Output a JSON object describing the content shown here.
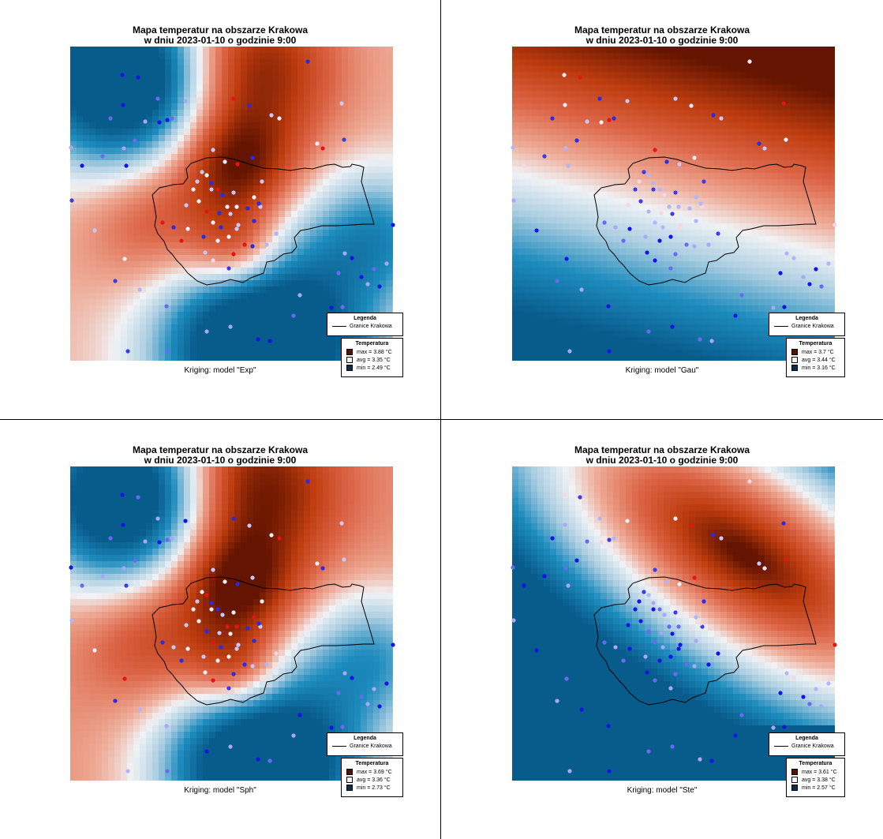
{
  "panels": [
    {
      "title_line1": "Mapa temperatur na obszarze Krakowa",
      "title_line2": "w dniu 2023-01-10 o godzinie 9:00",
      "caption": "Kriging: model \"Exp\"",
      "legend_title": "Legenda",
      "boundary_label": "Granice Krakowa",
      "temp_title": "Temperatura",
      "max_label": "max =  3.88 °C",
      "avg_label": "avg =  3.35 °C",
      "min_label": "min =  2.49 °C",
      "max": 3.88,
      "avg": 3.35,
      "min": 2.49
    },
    {
      "title_line1": "Mapa temperatur na obszarze Krakowa",
      "title_line2": "w dniu 2023-01-10 o godzinie 9:00",
      "caption": "Kriging: model \"Gau\"",
      "legend_title": "Legenda",
      "boundary_label": "Granice Krakowa",
      "temp_title": "Temperatura",
      "max_label": "max =  3.7 °C",
      "avg_label": "avg =  3.44 °C",
      "min_label": "min =  3.16 °C",
      "max": 3.7,
      "avg": 3.44,
      "min": 3.16
    },
    {
      "title_line1": "Mapa temperatur na obszarze Krakowa",
      "title_line2": "w dniu 2023-01-10 o godzinie 9:00",
      "caption": "Kriging: model \"Sph\"",
      "legend_title": "Legenda",
      "boundary_label": "Granice Krakowa",
      "temp_title": "Temperatura",
      "max_label": "max =  3.69 °C",
      "avg_label": "avg =  3.36 °C",
      "min_label": "min =  2.73 °C",
      "max": 3.69,
      "avg": 3.36,
      "min": 2.73
    },
    {
      "title_line1": "Mapa temperatur na obszarze Krakowa",
      "title_line2": "w dniu 2023-01-10 o godzinie 9:00",
      "caption": "Kriging: model \"Ste\"",
      "legend_title": "Legenda",
      "boundary_label": "Granice Krakowa",
      "temp_title": "Temperatura",
      "max_label": "max =  3.61 °C",
      "avg_label": "avg =  3.38 °C",
      "min_label": "min =  2.57 °C",
      "max": 3.61,
      "avg": 3.38,
      "min": 2.57
    }
  ],
  "colors": {
    "max": "#5a1200",
    "avg": "#f4f4f4",
    "min": "#0a2e4a",
    "hot": "#c0360a",
    "cold": "#0a6fa0",
    "boundary": "#000000"
  }
}
